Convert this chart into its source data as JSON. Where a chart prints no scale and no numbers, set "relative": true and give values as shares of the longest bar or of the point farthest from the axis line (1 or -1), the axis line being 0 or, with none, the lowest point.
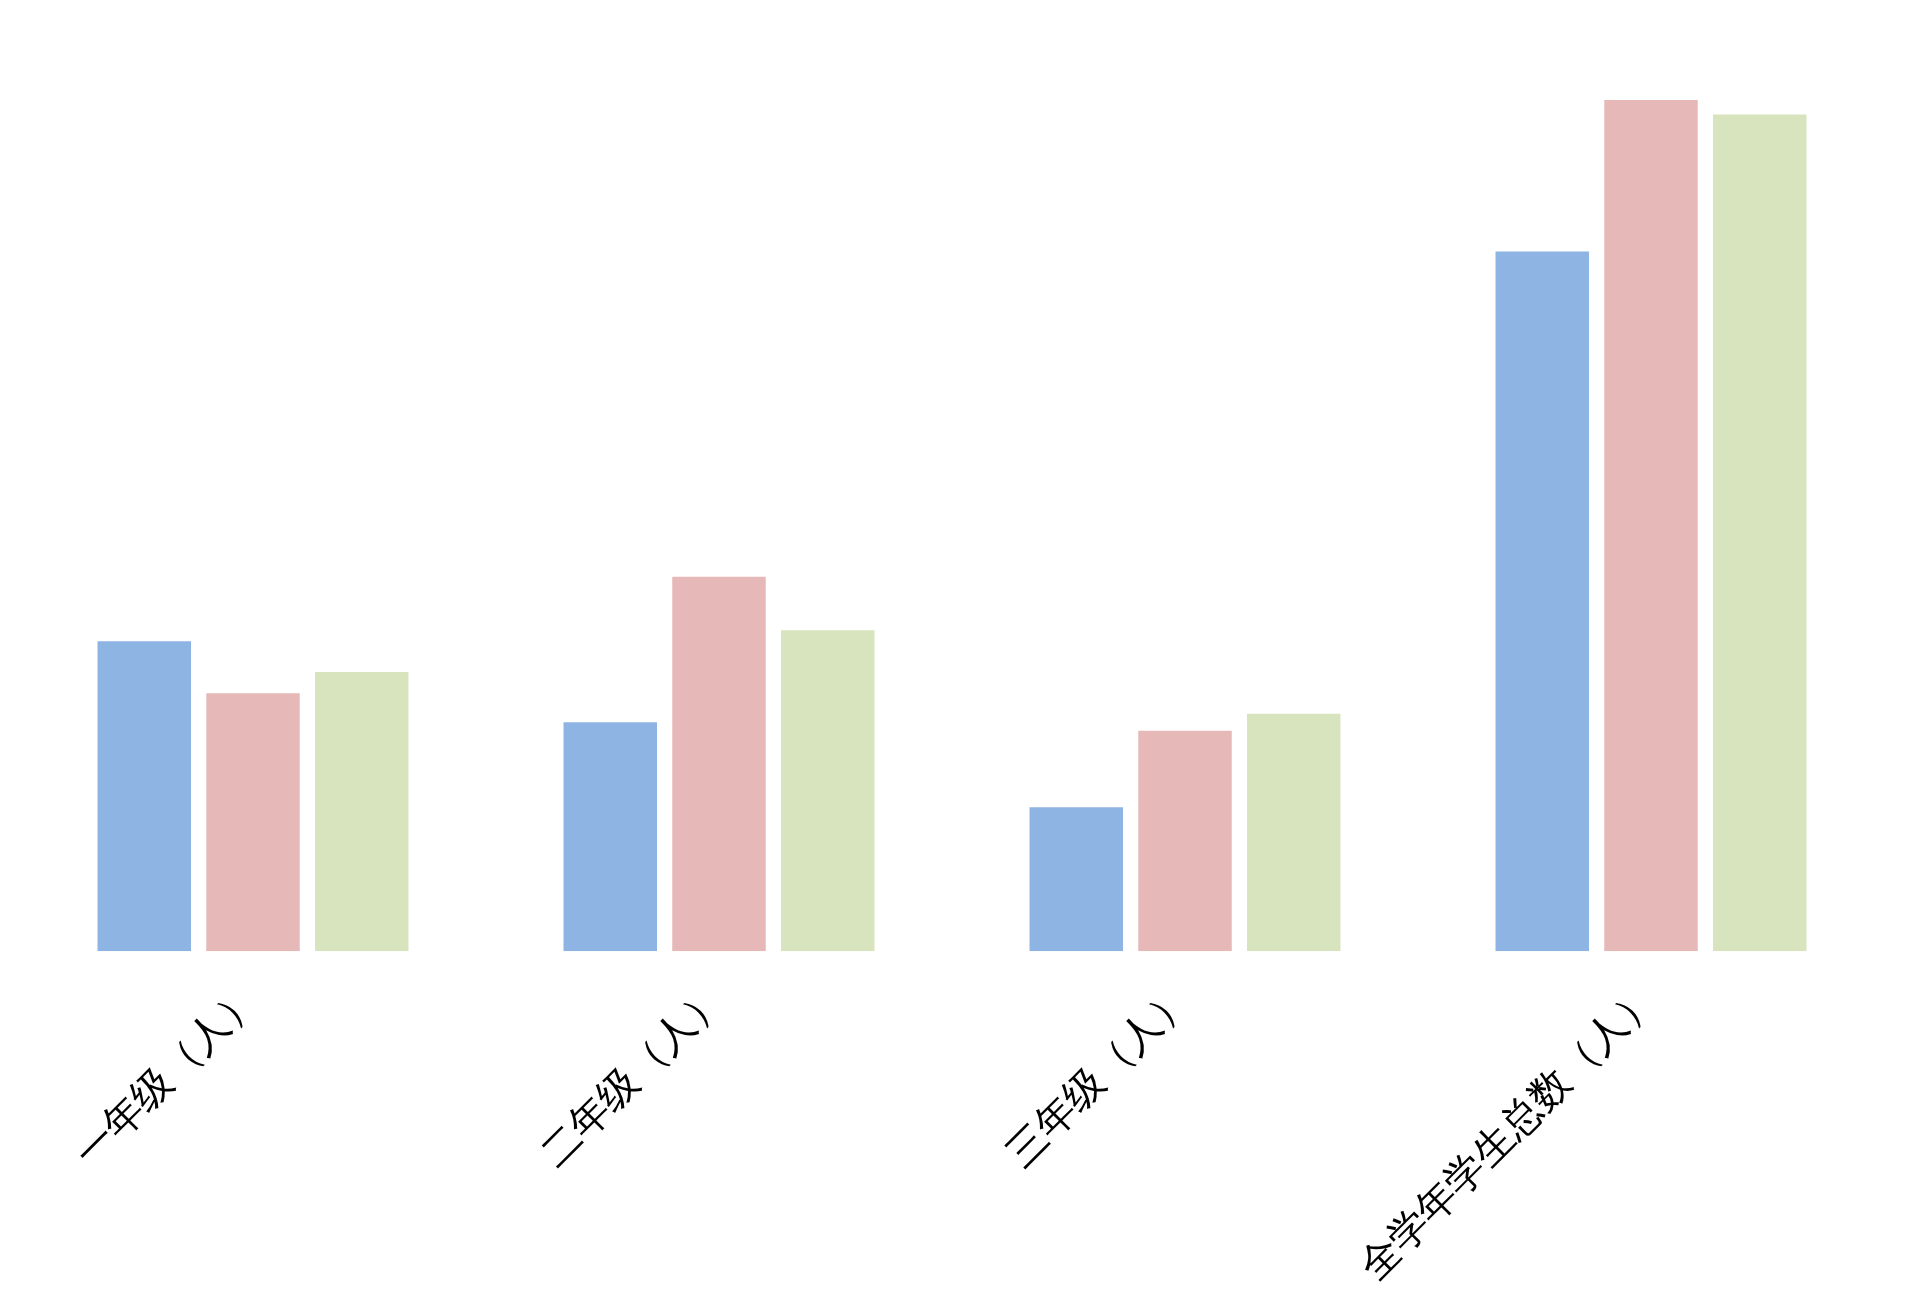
{
  "chart_data": {
    "type": "bar",
    "relative": true,
    "categories": [
      "一年级（人）",
      "二年级（人）",
      "三年级（人）",
      "全学年学生总数（人）"
    ],
    "series": [
      {
        "color": "#8eb4e3",
        "values": [
          0.364,
          0.269,
          0.169,
          0.822
        ]
      },
      {
        "color": "#e6b9b8",
        "values": [
          0.303,
          0.44,
          0.259,
          1
        ]
      },
      {
        "color": "#d7e4bd",
        "values": [
          0.328,
          0.377,
          0.279,
          0.983
        ]
      }
    ],
    "grid": false,
    "legend": false
  }
}
